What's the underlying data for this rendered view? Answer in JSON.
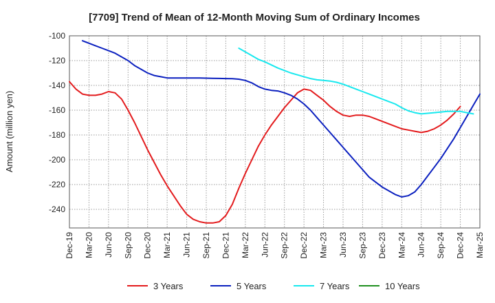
{
  "chart_data": {
    "type": "line",
    "title": "[7709]  Trend of Mean of 12-Month Moving Sum of Ordinary Incomes",
    "xlabel": "",
    "ylabel": "Amount (million yen)",
    "ylim": [
      -255,
      -100
    ],
    "yticks": [
      -100,
      -120,
      -140,
      -160,
      -180,
      -200,
      -220,
      -240
    ],
    "x_tick_labels": [
      "Dec-19",
      "Mar-20",
      "Jun-20",
      "Sep-20",
      "Dec-20",
      "Mar-21",
      "Jun-21",
      "Sep-21",
      "Dec-21",
      "Mar-22",
      "Jun-22",
      "Sep-22",
      "Dec-22",
      "Mar-23",
      "Jun-23",
      "Sep-23",
      "Dec-23",
      "Mar-24",
      "Jun-24",
      "Sep-24",
      "Dec-24",
      "Mar-25"
    ],
    "x_start": "Dec-19",
    "month_count": 63,
    "series": [
      {
        "name": "3 Years",
        "color": "#e31a1c",
        "start_month": 0,
        "values": [
          -137,
          -143,
          -147,
          -148,
          -148,
          -147,
          -145,
          -146,
          -151,
          -160,
          -170,
          -181,
          -192,
          -202,
          -212,
          -221,
          -229,
          -237,
          -244,
          -248,
          -250,
          -251,
          -251,
          -250,
          -245,
          -236,
          -223,
          -211,
          -200,
          -189,
          -180,
          -172,
          -165,
          -158,
          -152,
          -146,
          -143,
          -144,
          -148,
          -152,
          -157,
          -161,
          -164,
          -165,
          -164,
          -164,
          -165,
          -167,
          -169,
          -171,
          -173,
          -175,
          -176,
          -177,
          -178,
          -177,
          -175,
          -172,
          -168,
          -163,
          -157
        ]
      },
      {
        "name": "5 Years",
        "color": "#0a1fbf",
        "start_month": 2,
        "values": [
          -104,
          -106,
          -108,
          -110,
          -112,
          -114,
          -117,
          -120,
          -124,
          -127,
          -130,
          -132,
          -133,
          -134,
          -134,
          -134,
          -134,
          -134,
          -134,
          -134.2,
          -134.3,
          -134.4,
          -134.5,
          -134.6,
          -135,
          -136,
          -138,
          -141,
          -143,
          -144,
          -144.5,
          -146,
          -148,
          -151,
          -155,
          -160,
          -166,
          -172,
          -178,
          -184,
          -190,
          -196,
          -202,
          -208,
          -214,
          -218,
          -222,
          -225,
          -228,
          -230,
          -229,
          -226,
          -220,
          -213,
          -206,
          -199,
          -191,
          -183,
          -174,
          -165,
          -156,
          -147
        ]
      },
      {
        "name": "7 Years",
        "color": "#17e8ee",
        "start_month": 26,
        "values": [
          -110,
          -113,
          -116,
          -119,
          -121,
          -123.5,
          -126,
          -128,
          -130,
          -131.5,
          -133,
          -134.5,
          -135.5,
          -136,
          -136.5,
          -137.5,
          -139,
          -141,
          -143,
          -145,
          -147,
          -149,
          -151,
          -153,
          -155,
          -158,
          -160.5,
          -162,
          -163,
          -162.5,
          -162,
          -161.5,
          -161,
          -161,
          -161,
          -162,
          -163
        ]
      },
      {
        "name": "10 Years",
        "color": "#1e8f1e",
        "start_month": 0,
        "values": []
      }
    ]
  }
}
